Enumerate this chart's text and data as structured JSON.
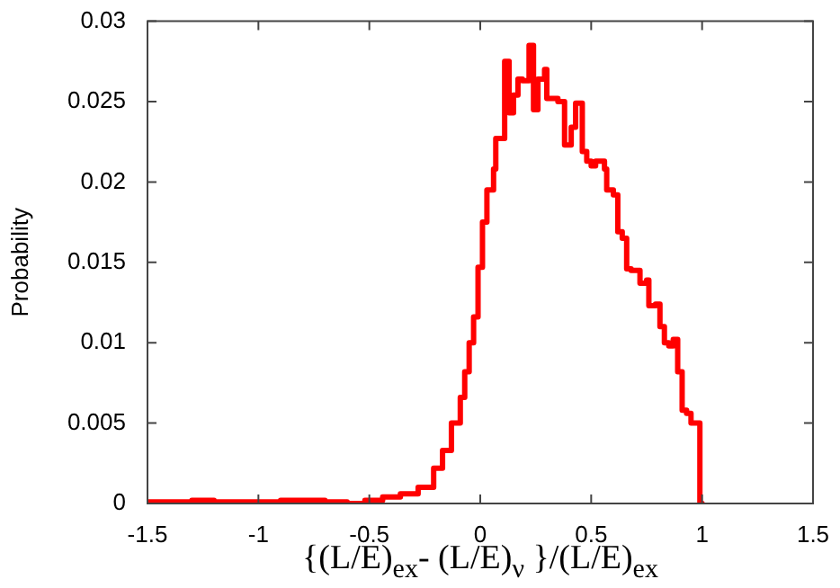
{
  "chart_data": {
    "type": "step",
    "xlabel": "{(L/E)$_{ex}$- (L/E)$_{ν}$ }/(L/E)$_{ex}$",
    "ylabel": "Probability",
    "x": [
      -1.5,
      -1.3,
      -1.2,
      -1.1,
      -0.9,
      -0.7,
      -0.6,
      -0.52,
      -0.44,
      -0.36,
      -0.28,
      -0.21,
      -0.17,
      -0.13,
      -0.09,
      -0.07,
      -0.05,
      -0.03,
      -0.01,
      0.01,
      0.03,
      0.06,
      0.07,
      0.11,
      0.13,
      0.15,
      0.17,
      0.19,
      0.22,
      0.24,
      0.26,
      0.29,
      0.3,
      0.33,
      0.35,
      0.38,
      0.41,
      0.43,
      0.46,
      0.48,
      0.5,
      0.52,
      0.56,
      0.57,
      0.6,
      0.62,
      0.64,
      0.66,
      0.68,
      0.72,
      0.75,
      0.76,
      0.79,
      0.81,
      0.83,
      0.85,
      0.87,
      0.89,
      0.91,
      0.93,
      0.95,
      0.97,
      0.99,
      1.0
    ],
    "series": [
      {
        "color": "#ff0000",
        "values": [
          0.0001,
          0.0001,
          0.0002,
          0.0001,
          0.0001,
          0.0002,
          0.0001,
          0,
          0.0002,
          0.0004,
          0.0006,
          0.001,
          0.0022,
          0.0033,
          0.005,
          0.0066,
          0.0082,
          0.01,
          0.0116,
          0.0147,
          0.0175,
          0.0195,
          0.0208,
          0.0227,
          0.0275,
          0.0243,
          0.0254,
          0.0264,
          0.0263,
          0.0285,
          0.0245,
          0.0264,
          0.027,
          0.0252,
          0.0252,
          0.025,
          0.0223,
          0.0234,
          0.0249,
          0.0219,
          0.0213,
          0.021,
          0.0213,
          0.0208,
          0.0195,
          0.0192,
          0.0169,
          0.0165,
          0.0146,
          0.0145,
          0.0137,
          0.0139,
          0.0123,
          0.0124,
          0.011,
          0.01,
          0.0098,
          0.0102,
          0.0082,
          0.0058,
          0.0056,
          0.005,
          0.005,
          0
        ]
      }
    ],
    "xlim": [
      -1.5,
      1.5
    ],
    "xticks": [
      -1.5,
      -1,
      -0.5,
      0,
      0.5,
      1,
      1.5
    ],
    "ylim": [
      0,
      0.03
    ],
    "yticks": [
      0,
      0.005,
      0.01,
      0.015,
      0.02,
      0.025,
      0.03
    ]
  }
}
